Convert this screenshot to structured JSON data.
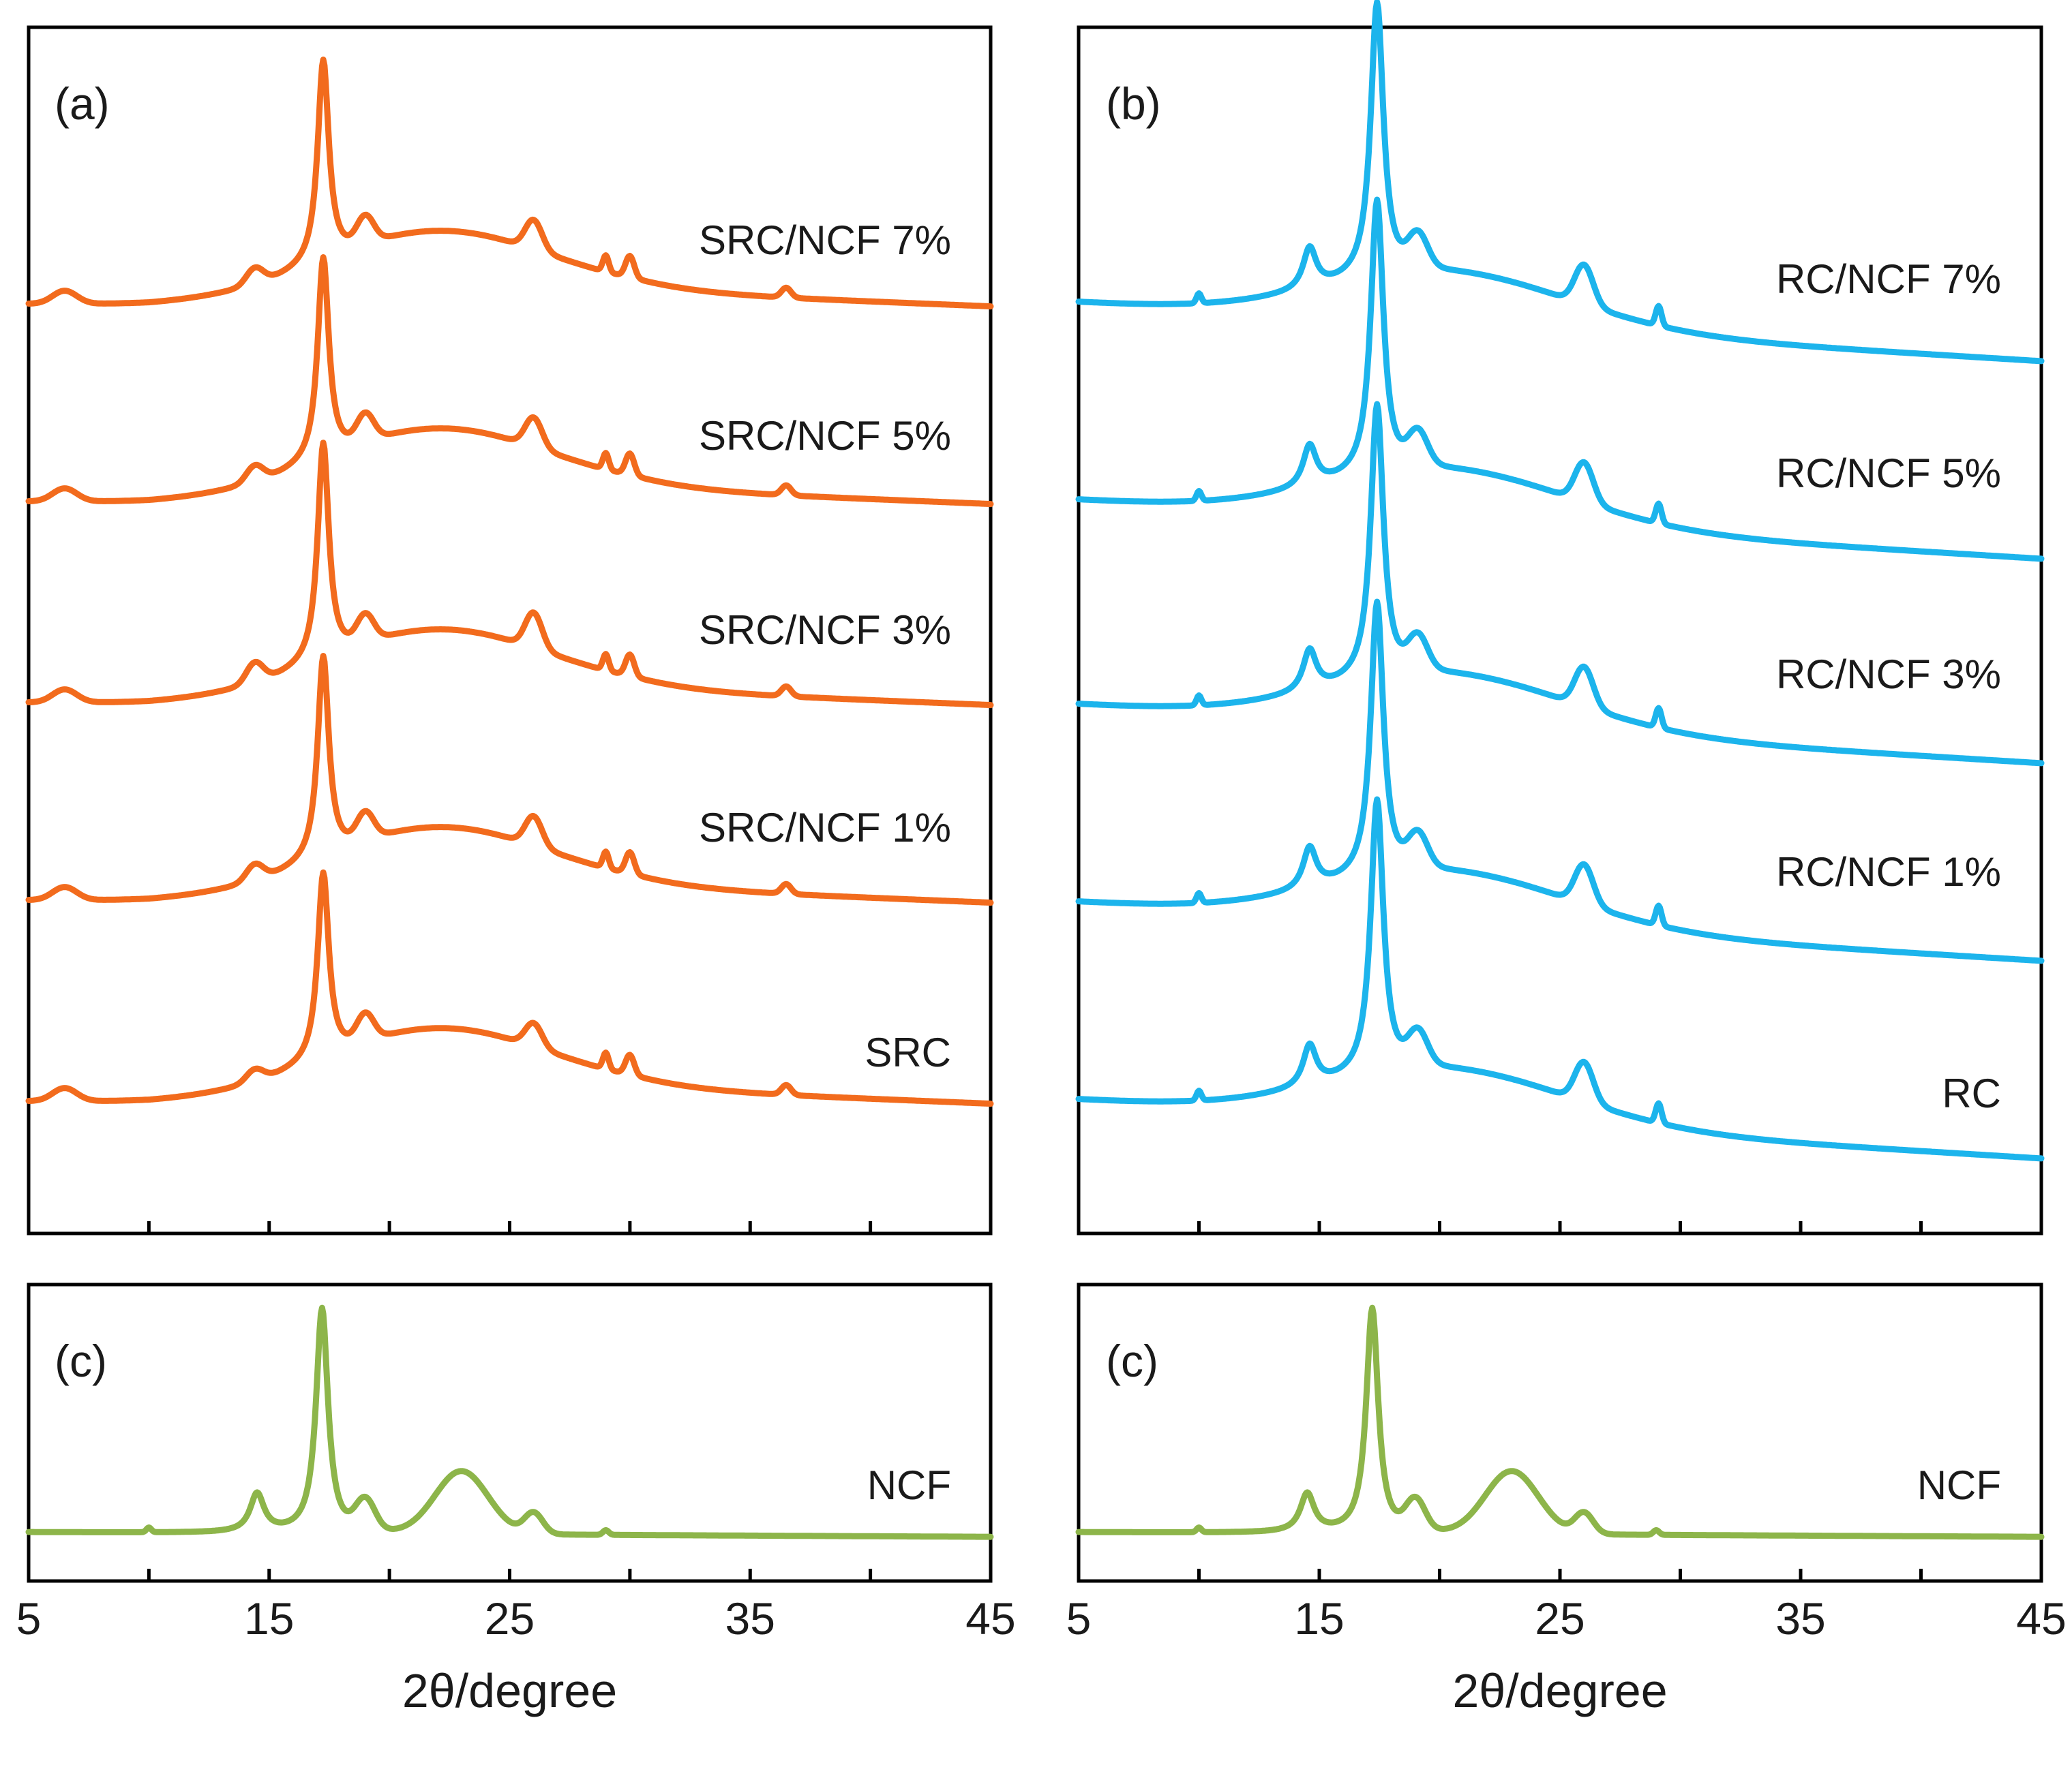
{
  "chart_data": [
    {
      "panel": "(a)",
      "type": "line",
      "title": "",
      "xlabel": "2θ/degree",
      "ylabel": "",
      "xlim": [
        5,
        45
      ],
      "color": "#F26B1D",
      "series": [
        {
          "name": "SRC/NCF 7%",
          "peak_2theta": [
            14.5,
            17.2,
            19.0,
            22.0,
            26.0,
            30.0
          ],
          "relative_intensity": [
            0.28,
            0.95,
            0.52,
            0.64,
            0.3,
            0.13
          ]
        },
        {
          "name": "SRC/NCF 5%",
          "peak_2theta": [
            14.5,
            17.2,
            19.0,
            22.0,
            26.0,
            30.0
          ],
          "relative_intensity": [
            0.28,
            0.95,
            0.52,
            0.64,
            0.3,
            0.13
          ]
        },
        {
          "name": "SRC/NCF 3%",
          "peak_2theta": [
            14.5,
            17.2,
            19.0,
            22.0,
            26.0,
            30.0
          ],
          "relative_intensity": [
            0.3,
            1.0,
            0.52,
            0.62,
            0.32,
            0.13
          ]
        },
        {
          "name": "SRC/NCF 1%",
          "peak_2theta": [
            14.5,
            17.2,
            19.0,
            22.0,
            26.0,
            30.0
          ],
          "relative_intensity": [
            0.28,
            0.95,
            0.52,
            0.64,
            0.3,
            0.13
          ]
        },
        {
          "name": "SRC",
          "peak_2theta": [
            14.5,
            17.2,
            19.0,
            22.0,
            26.0,
            30.0
          ],
          "relative_intensity": [
            0.26,
            0.9,
            0.5,
            0.62,
            0.28,
            0.12
          ]
        }
      ]
    },
    {
      "panel": "(b)",
      "type": "line",
      "title": "",
      "xlabel": "2θ/degree",
      "ylabel": "",
      "xlim": [
        5,
        45
      ],
      "color": "#1CB4EC",
      "series": [
        {
          "name": "RC/NCF 7%",
          "peak_2theta": [
            14.7,
            17.4,
            19.0,
            26.0,
            29.0
          ],
          "relative_intensity": [
            0.4,
            1.0,
            0.55,
            0.42,
            0.2
          ]
        },
        {
          "name": "RC/NCF 5%",
          "peak_2theta": [
            14.7,
            17.4,
            19.0,
            26.0,
            29.0
          ],
          "relative_intensity": [
            0.4,
            1.0,
            0.55,
            0.42,
            0.2
          ]
        },
        {
          "name": "RC/NCF 3%",
          "peak_2theta": [
            14.7,
            17.4,
            19.0,
            26.0,
            29.0
          ],
          "relative_intensity": [
            0.4,
            1.0,
            0.55,
            0.42,
            0.2
          ]
        },
        {
          "name": "RC/NCF 1%",
          "peak_2theta": [
            14.7,
            17.4,
            19.0,
            26.0,
            29.0
          ],
          "relative_intensity": [
            0.4,
            1.0,
            0.55,
            0.42,
            0.2
          ]
        },
        {
          "name": "RC",
          "peak_2theta": [
            14.7,
            17.4,
            19.0,
            26.0,
            29.0
          ],
          "relative_intensity": [
            0.4,
            1.0,
            0.55,
            0.42,
            0.2
          ]
        }
      ]
    },
    {
      "panel": "(c)",
      "type": "line",
      "title": "",
      "xlabel": "2θ/degree",
      "ylabel": "",
      "xlim": [
        5,
        45
      ],
      "color": "#8DB54A",
      "series": [
        {
          "name": "NCF",
          "peak_2theta": [
            14.5,
            17.2,
            19.0,
            23.0,
            26.0
          ],
          "relative_intensity": [
            0.35,
            1.0,
            0.32,
            0.34,
            0.15
          ]
        }
      ]
    },
    {
      "panel": "(c)",
      "type": "line",
      "title": "",
      "xlabel": "2θ/degree",
      "ylabel": "",
      "xlim": [
        5,
        45
      ],
      "color": "#8DB54A",
      "series": [
        {
          "name": "NCF",
          "peak_2theta": [
            14.5,
            17.2,
            19.0,
            23.0,
            26.0
          ],
          "relative_intensity": [
            0.35,
            1.0,
            0.32,
            0.34,
            0.15
          ]
        }
      ]
    }
  ],
  "x_ticks": [
    5,
    15,
    25,
    35,
    45
  ]
}
